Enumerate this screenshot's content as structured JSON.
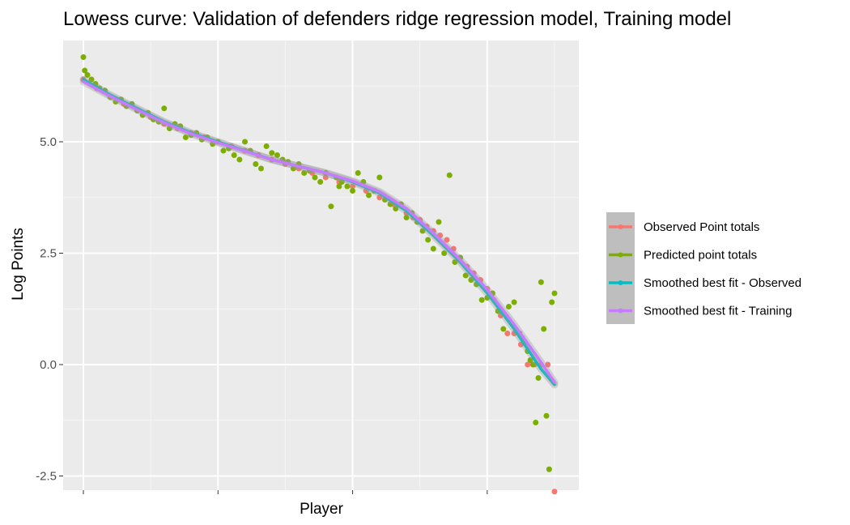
{
  "chart_data": {
    "type": "scatter",
    "title": "Lowess curve: Validation of defenders ridge regression model, Training model",
    "xlabel": "Player",
    "ylabel": "Log Points",
    "xlim": [
      0,
      360
    ],
    "ylim": [
      -2.8,
      7.0
    ],
    "y_ticks": [
      5.0,
      2.5,
      0.0,
      -2.5
    ],
    "y_tick_labels": [
      "5.0",
      "2.5",
      "0.0",
      "-2.5"
    ],
    "x_ticks": [
      0,
      100,
      200,
      300
    ],
    "x_tick_labels": [
      "",
      "",
      "",
      ""
    ],
    "grid": true,
    "legend_position": "right",
    "legend": [
      {
        "label": "Observed Point totals",
        "color": "#F8766D"
      },
      {
        "label": "Predicted point totals",
        "color": "#7CAE00"
      },
      {
        "label": "Smoothed best fit - Observed",
        "color": "#00BFC4"
      },
      {
        "label": "Smoothed best fit - Training",
        "color": "#C77CFF"
      }
    ],
    "series": [
      {
        "name": "Observed Point totals",
        "color": "#F8766D",
        "style": "points",
        "x": [
          0,
          10,
          20,
          30,
          40,
          50,
          60,
          70,
          80,
          90,
          100,
          110,
          120,
          130,
          140,
          150,
          160,
          170,
          180,
          190,
          200,
          210,
          220,
          230,
          240,
          245,
          250,
          255,
          260,
          265,
          270,
          275,
          280,
          285,
          290,
          295,
          300,
          305,
          310,
          315,
          320,
          325,
          330,
          335,
          340,
          345,
          350
        ],
        "y": [
          6.4,
          6.2,
          6.0,
          5.85,
          5.7,
          5.55,
          5.4,
          5.3,
          5.2,
          5.1,
          5.0,
          4.9,
          4.8,
          4.7,
          4.6,
          4.5,
          4.4,
          4.3,
          4.2,
          4.1,
          4.0,
          3.9,
          3.75,
          3.6,
          3.4,
          3.3,
          3.25,
          3.1,
          3.0,
          2.9,
          2.8,
          2.6,
          2.4,
          2.2,
          2.05,
          1.9,
          1.7,
          1.45,
          1.1,
          0.7,
          0.7,
          0.45,
          0.0,
          0.0,
          0.0,
          0.0,
          -2.85
        ]
      },
      {
        "name": "Predicted point totals",
        "color": "#7CAE00",
        "style": "points",
        "x": [
          0,
          1,
          3,
          6,
          9,
          12,
          16,
          20,
          24,
          28,
          32,
          36,
          40,
          44,
          48,
          52,
          56,
          60,
          64,
          68,
          72,
          76,
          80,
          84,
          88,
          92,
          96,
          100,
          104,
          108,
          112,
          116,
          120,
          124,
          128,
          132,
          136,
          140,
          144,
          148,
          152,
          156,
          160,
          164,
          168,
          172,
          176,
          180,
          184,
          188,
          190,
          192,
          196,
          200,
          204,
          208,
          212,
          216,
          220,
          224,
          228,
          232,
          236,
          240,
          244,
          248,
          252,
          256,
          260,
          264,
          268,
          272,
          276,
          280,
          284,
          288,
          292,
          296,
          300,
          304,
          308,
          312,
          316,
          320,
          322,
          324,
          326,
          328,
          330,
          332,
          334,
          336,
          338,
          340,
          342,
          344,
          346,
          348,
          350
        ],
        "y": [
          6.9,
          6.6,
          6.5,
          6.4,
          6.3,
          6.2,
          6.15,
          6.0,
          5.9,
          5.95,
          5.8,
          5.85,
          5.7,
          5.6,
          5.65,
          5.5,
          5.45,
          5.75,
          5.3,
          5.4,
          5.35,
          5.1,
          5.15,
          5.2,
          5.05,
          5.1,
          4.95,
          5.0,
          4.8,
          4.85,
          4.7,
          4.6,
          5.0,
          4.8,
          4.5,
          4.4,
          4.9,
          4.75,
          4.7,
          4.6,
          4.55,
          4.4,
          4.5,
          4.3,
          4.35,
          4.2,
          4.1,
          4.3,
          3.55,
          4.2,
          4.0,
          4.1,
          4.0,
          3.9,
          4.3,
          4.1,
          3.8,
          3.9,
          4.2,
          3.7,
          3.6,
          3.5,
          3.6,
          3.3,
          3.4,
          3.2,
          3.0,
          2.8,
          2.6,
          3.2,
          2.5,
          4.25,
          2.3,
          2.4,
          2.0,
          1.9,
          1.8,
          1.45,
          1.5,
          1.6,
          1.2,
          0.8,
          1.3,
          1.4,
          0.75,
          0.7,
          0.6,
          0.5,
          0.3,
          0.1,
          0.0,
          -1.3,
          -0.3,
          1.85,
          0.8,
          -1.15,
          -2.35,
          1.4,
          1.6
        ]
      },
      {
        "name": "Smoothed best fit - Observed",
        "color": "#00BFC4",
        "style": "line",
        "x": [
          0,
          20,
          40,
          60,
          80,
          100,
          120,
          140,
          160,
          180,
          200,
          220,
          240,
          260,
          280,
          300,
          320,
          340,
          350
        ],
        "y": [
          6.4,
          6.05,
          5.75,
          5.45,
          5.2,
          5.0,
          4.8,
          4.6,
          4.45,
          4.3,
          4.1,
          3.85,
          3.45,
          2.9,
          2.3,
          1.6,
          0.8,
          -0.1,
          -0.45
        ]
      },
      {
        "name": "Smoothed best fit - Training",
        "color": "#C77CFF",
        "style": "line",
        "x": [
          0,
          20,
          40,
          60,
          80,
          100,
          120,
          140,
          160,
          180,
          200,
          220,
          240,
          260,
          280,
          300,
          320,
          340,
          350
        ],
        "y": [
          6.35,
          6.02,
          5.72,
          5.43,
          5.18,
          4.98,
          4.79,
          4.6,
          4.45,
          4.3,
          4.12,
          3.88,
          3.5,
          2.95,
          2.35,
          1.68,
          0.9,
          0.05,
          -0.4
        ]
      }
    ]
  }
}
